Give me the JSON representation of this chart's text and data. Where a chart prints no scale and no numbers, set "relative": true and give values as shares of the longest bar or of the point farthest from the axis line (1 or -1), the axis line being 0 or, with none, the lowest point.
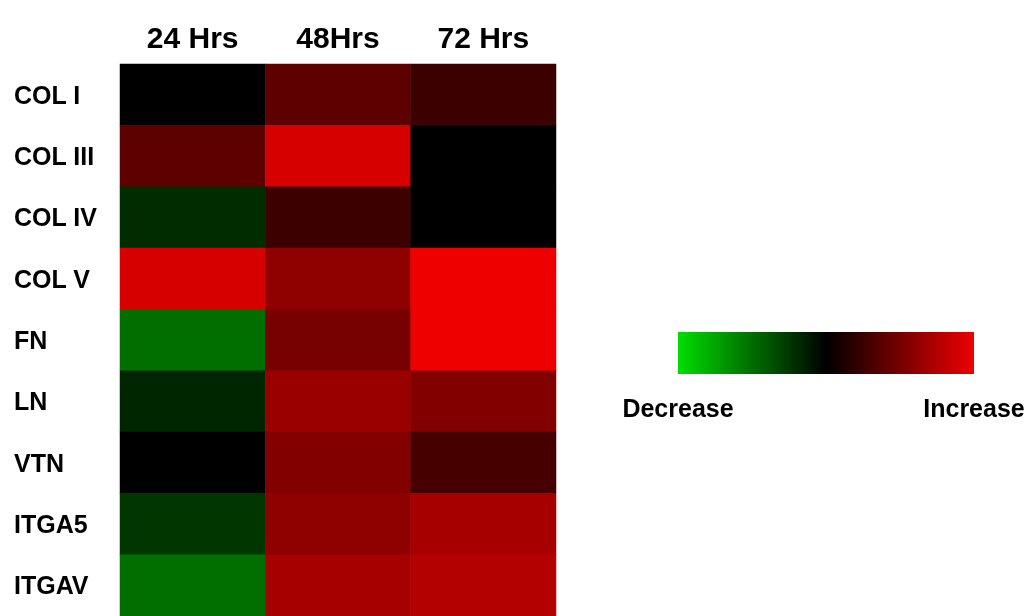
{
  "chart_data": {
    "type": "heatmap",
    "relative": true,
    "categories": [
      "24 Hrs",
      "48Hrs",
      "72 Hrs"
    ],
    "y_categories": [
      "COL I",
      "COL III",
      "COL IV",
      "COL V",
      "FN",
      "LN",
      "VTN",
      "ITGA5",
      "ITGAV"
    ],
    "cells": [
      [
        0,
        0.4,
        0.25
      ],
      [
        0.4,
        0.9,
        0
      ],
      [
        -0.2,
        0.25,
        0
      ],
      [
        0.9,
        0.6,
        1
      ],
      [
        -0.5,
        0.5,
        1
      ],
      [
        -0.17,
        0.65,
        0.55
      ],
      [
        0,
        0.55,
        0.3
      ],
      [
        -0.25,
        0.6,
        0.7
      ],
      [
        -0.5,
        0.7,
        0.75
      ]
    ],
    "clim": [
      -1,
      1
    ],
    "cticks": [
      {
        "value": -1,
        "label": "Decrease"
      },
      {
        "value": 1,
        "label": "Increase"
      }
    ],
    "colors": [
      "#00dd00",
      "#000000",
      "#ee0000"
    ]
  }
}
